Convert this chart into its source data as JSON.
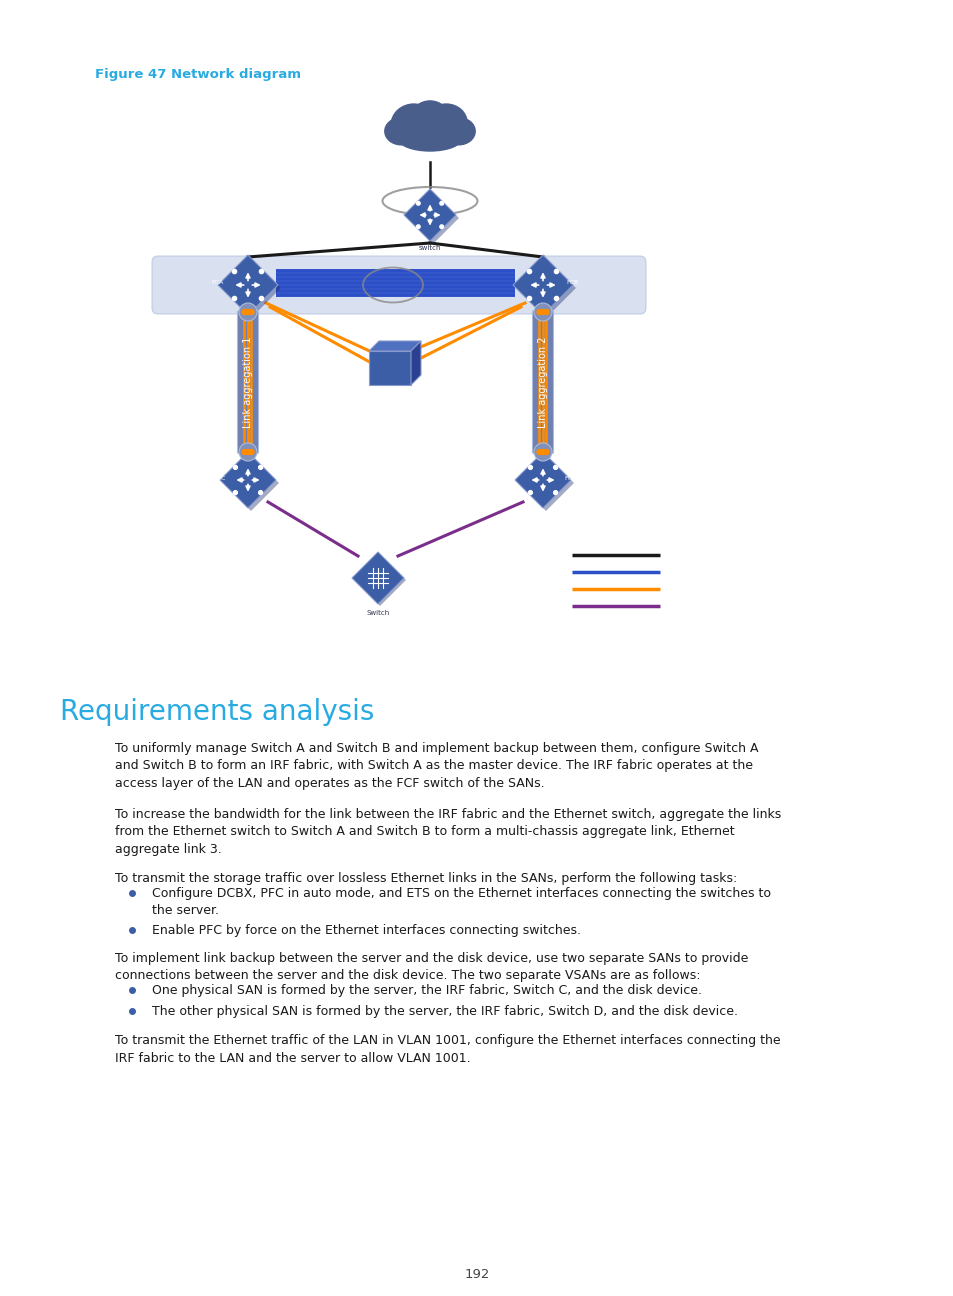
{
  "figure_label": "Figure 47 Network diagram",
  "figure_label_color": "#29ABE2",
  "section_title": "Requirements analysis",
  "section_title_color": "#29ABE2",
  "page_number": "192",
  "background_color": "#ffffff",
  "para1": "To uniformly manage Switch A and Switch B and implement backup between them, configure Switch A and Switch B to form an IRF fabric, with Switch A as the master device. The IRF fabric operates at the access layer of the LAN and operates as the FCF switch of the SANs.",
  "para2": "To increase the bandwidth for the link between the IRF fabric and the Ethernet switch, aggregate the links from the Ethernet switch to Switch A and Switch B to form a multi-chassis aggregate link, Ethernet aggregate link 3.",
  "para3": "To transmit the storage traffic over lossless Ethernet links in the SANs, perform the following tasks:",
  "bullet1a": "Configure DCBX, PFC in auto mode, and ETS on the Ethernet interfaces connecting the switches to the server.",
  "bullet1b": "Enable PFC by force on the Ethernet interfaces connecting switches.",
  "para4": "To implement link backup between the server and the disk device, use two separate SANs to provide connections between the server and the disk device. The two separate VSANs are as follows:",
  "bullet2a": "One physical SAN is formed by the server, the IRF fabric, Switch C, and the disk device.",
  "bullet2b": "The other physical SAN is formed by the server, the IRF fabric, Switch D, and the disk device.",
  "para5": "To transmit the Ethernet traffic of the LAN in VLAN 1001, configure the Ethernet interfaces connecting the IRF fabric to the LAN and the server to allow VLAN 1001.",
  "link_agg_1_label": "Link aggregation 1",
  "link_agg_2_label": "Link aggregation 2",
  "switch_color": "#3B5EA6",
  "cloud_color": "#4A5E8C",
  "irf_band_color": "#C5D0E8",
  "orange_line_color": "#FF8C00",
  "purple_line_color": "#7B2D8B",
  "black_line_color": "#1A1A1A",
  "blue_line_color": "#2B4FC7",
  "bar_color": "#7080B0",
  "text_color": "#1A1A1A",
  "bullet_color": "#3B5EA6"
}
